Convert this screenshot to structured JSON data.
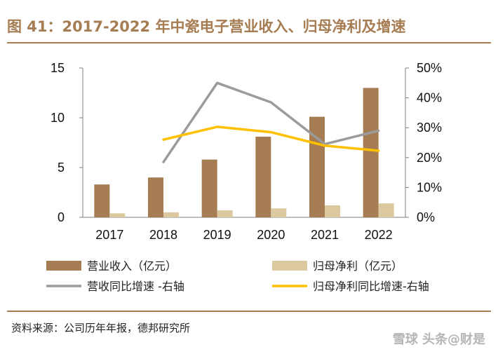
{
  "header": {
    "title": "图 41：2017-2022 年中瓷电子营业收入、归母净利及增速"
  },
  "footer": {
    "source": "资料来源：公司历年年报，德邦研究所",
    "watermark": "雪球 头条@财是"
  },
  "colors": {
    "revenue_bar": "#a67c52",
    "profit_bar": "#dcc9a0",
    "revenue_growth_line": "#9b9b9b",
    "profit_growth_line": "#ffc000",
    "accent": "#a67c52"
  },
  "chart_data": {
    "type": "bar",
    "categories": [
      "2017",
      "2018",
      "2019",
      "2020",
      "2021",
      "2022"
    ],
    "series": [
      {
        "name": "营业收入（亿元）",
        "type": "bar",
        "axis": "left",
        "values": [
          3.3,
          4.0,
          5.8,
          8.1,
          10.1,
          13.0
        ]
      },
      {
        "name": "归母净利（亿元）",
        "type": "bar",
        "axis": "left",
        "values": [
          0.4,
          0.5,
          0.7,
          0.9,
          1.2,
          1.4
        ]
      },
      {
        "name": "营收同比增速 -右轴",
        "type": "line",
        "axis": "right",
        "values": [
          null,
          18.5,
          45.0,
          38.5,
          24.5,
          29.0
        ]
      },
      {
        "name": "归母净利同比增速-右轴",
        "type": "line",
        "axis": "right",
        "values": [
          null,
          26.0,
          30.3,
          28.5,
          24.0,
          22.3
        ]
      }
    ],
    "y_left": {
      "min": 0,
      "max": 15,
      "ticks": [
        "0",
        "5",
        "10",
        "15"
      ]
    },
    "y_right": {
      "min": 0,
      "max": 50,
      "ticks": [
        "0%",
        "10%",
        "20%",
        "30%",
        "40%",
        "50%"
      ]
    },
    "grid": false,
    "legend": "bottom"
  }
}
